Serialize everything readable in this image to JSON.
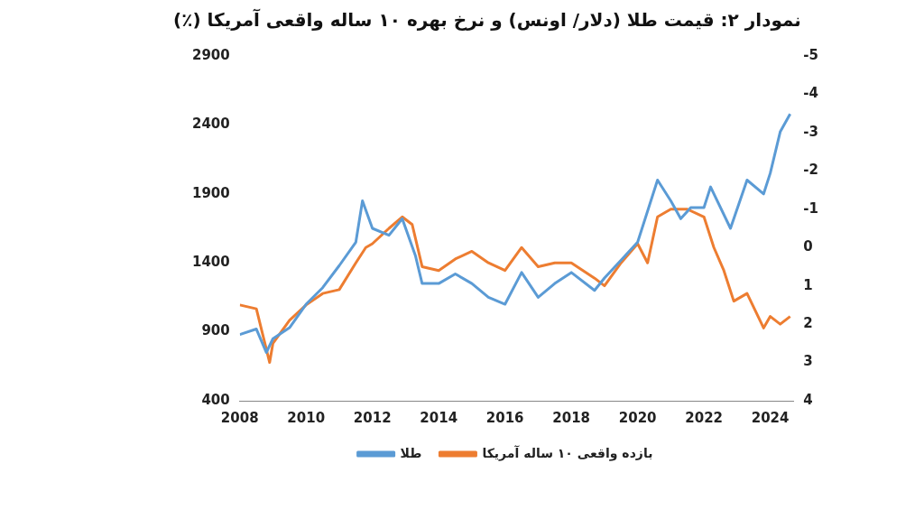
{
  "chart_data": {
    "type": "line",
    "title": "نمودار ۲: قیمت طلا (دلار/ اونس) و نرخ بهره ۱۰ ساله واقعی آمریکا (٪)",
    "xlim": [
      2008,
      2024.7
    ],
    "xticks": [
      2008,
      2010,
      2012,
      2014,
      2016,
      2018,
      2020,
      2022,
      2024
    ],
    "ylim": [
      400,
      2900
    ],
    "yticks": [
      400,
      900,
      1400,
      1900,
      2400,
      2900
    ],
    "y2lim": [
      4,
      -5
    ],
    "y2ticks": [
      4,
      3,
      2,
      1,
      0,
      -1,
      -2,
      -3,
      -4,
      -5
    ],
    "grid": false,
    "legend": "bottom",
    "marker": "none",
    "line_style": "solid",
    "series": [
      {
        "name": "طلا",
        "color": "#5b9bd5",
        "x": [
          2008.0,
          2008.5,
          2008.8,
          2009.0,
          2009.5,
          2010.0,
          2010.5,
          2011.0,
          2011.5,
          2011.7,
          2012.0,
          2012.5,
          2012.9,
          2013.3,
          2013.5,
          2014.0,
          2014.5,
          2015.0,
          2015.5,
          2016.0,
          2016.5,
          2017.0,
          2017.5,
          2018.0,
          2018.7,
          2019.0,
          2019.5,
          2020.0,
          2020.6,
          2021.0,
          2021.3,
          2021.6,
          2022.0,
          2022.2,
          2022.8,
          2023.3,
          2023.8,
          2024.0,
          2024.3,
          2024.6
        ],
        "values": [
          880,
          920,
          750,
          850,
          930,
          1100,
          1220,
          1380,
          1550,
          1850,
          1650,
          1600,
          1720,
          1450,
          1250,
          1250,
          1320,
          1250,
          1150,
          1100,
          1330,
          1150,
          1250,
          1330,
          1200,
          1290,
          1420,
          1550,
          2000,
          1850,
          1720,
          1800,
          1800,
          1950,
          1650,
          2000,
          1900,
          2050,
          2350,
          2480
        ]
      },
      {
        "name": "بازده واقعی ۱۰ ساله آمریکا",
        "color": "#ed7d31",
        "axis": "y2",
        "x": [
          2008.0,
          2008.5,
          2008.9,
          2009.0,
          2009.5,
          2010.0,
          2010.5,
          2011.0,
          2011.5,
          2011.8,
          2012.0,
          2012.5,
          2012.9,
          2013.2,
          2013.5,
          2014.0,
          2014.5,
          2015.0,
          2015.5,
          2016.0,
          2016.5,
          2017.0,
          2017.5,
          2018.0,
          2018.7,
          2019.0,
          2019.5,
          2020.0,
          2020.3,
          2020.6,
          2021.0,
          2021.5,
          2022.0,
          2022.3,
          2022.6,
          2022.9,
          2023.3,
          2023.8,
          2024.0,
          2024.3,
          2024.6
        ],
        "values": [
          1.5,
          1.6,
          3.0,
          2.5,
          1.9,
          1.5,
          1.2,
          1.1,
          0.4,
          0.0,
          -0.1,
          -0.5,
          -0.8,
          -0.6,
          0.5,
          0.6,
          0.3,
          0.1,
          0.4,
          0.6,
          0.0,
          0.5,
          0.4,
          0.4,
          0.8,
          1.0,
          0.4,
          -0.1,
          0.4,
          -0.8,
          -1.0,
          -1.0,
          -0.8,
          0.0,
          0.6,
          1.4,
          1.2,
          2.1,
          1.8,
          2.0,
          1.8
        ]
      }
    ]
  }
}
